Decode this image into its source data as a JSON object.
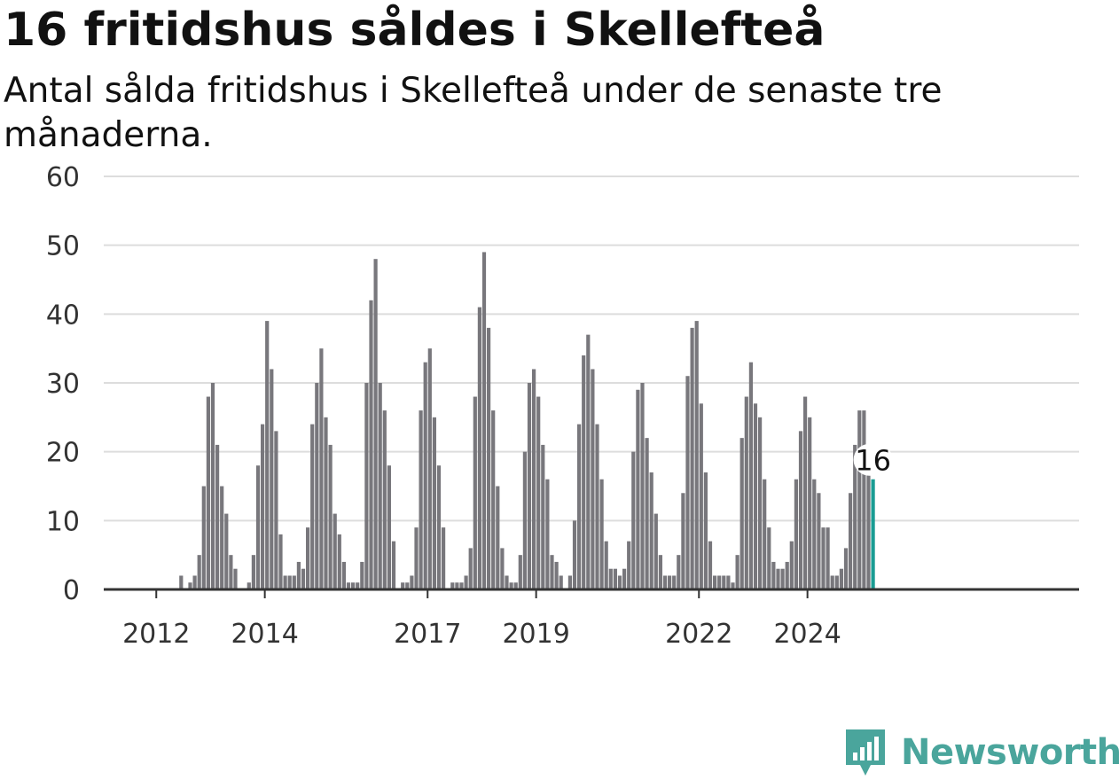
{
  "title": "16 fritidshus såldes i Skellefteå",
  "subtitle": "Antal sålda fritidshus i Skellefteå under de senaste tre månaderna.",
  "brand": {
    "name": "Newsworthy",
    "color": "#4aa59c",
    "icon": "newsworthy-chart-bubble-icon"
  },
  "chart_data": {
    "type": "bar",
    "title": "16 fritidshus såldes i Skellefteå",
    "subtitle": "Antal sålda fritidshus i Skellefteå under de senaste tre månaderna.",
    "xlabel": "",
    "ylabel": "",
    "ylim": [
      0,
      60
    ],
    "yticks": [
      0,
      10,
      20,
      30,
      40,
      50,
      60
    ],
    "xticks": [
      "2012",
      "2014",
      "2017",
      "2019",
      "2022",
      "2024"
    ],
    "grid": true,
    "legend": "none",
    "bar_color": "#78777c",
    "highlight_color": "#1a9c93",
    "highlight_label": "16",
    "series": [
      {
        "values": [
          0,
          0,
          0,
          0,
          0,
          0,
          0,
          2,
          0,
          1,
          2,
          5,
          15,
          28,
          30,
          21,
          15,
          11,
          5,
          3,
          0,
          0,
          1,
          5,
          18,
          24,
          39,
          32,
          23,
          8,
          2,
          2,
          2,
          4,
          3,
          9,
          24,
          30,
          35,
          25,
          21,
          11,
          8,
          4,
          1,
          1,
          1,
          4,
          30,
          42,
          48,
          30,
          26,
          18,
          7,
          0,
          1,
          1,
          2,
          9,
          26,
          33,
          35,
          25,
          18,
          9,
          0,
          1,
          1,
          1,
          2,
          6,
          28,
          41,
          49,
          38,
          26,
          15,
          6,
          2,
          1,
          1,
          5,
          20,
          30,
          32,
          28,
          21,
          16,
          5,
          4,
          2,
          0,
          2,
          10,
          24,
          34,
          37,
          32,
          24,
          16,
          7,
          3,
          3,
          2,
          3,
          7,
          20,
          29,
          30,
          22,
          17,
          11,
          5,
          2,
          2,
          2,
          5,
          14,
          31,
          38,
          39,
          27,
          17,
          7,
          2,
          2,
          2,
          2,
          1,
          5,
          22,
          28,
          33,
          27,
          25,
          16,
          9,
          4,
          3,
          3,
          4,
          7,
          16,
          23,
          28,
          25,
          16,
          14,
          9,
          9,
          2,
          2,
          3,
          6,
          14,
          21,
          26,
          26,
          18,
          16
        ]
      }
    ]
  }
}
